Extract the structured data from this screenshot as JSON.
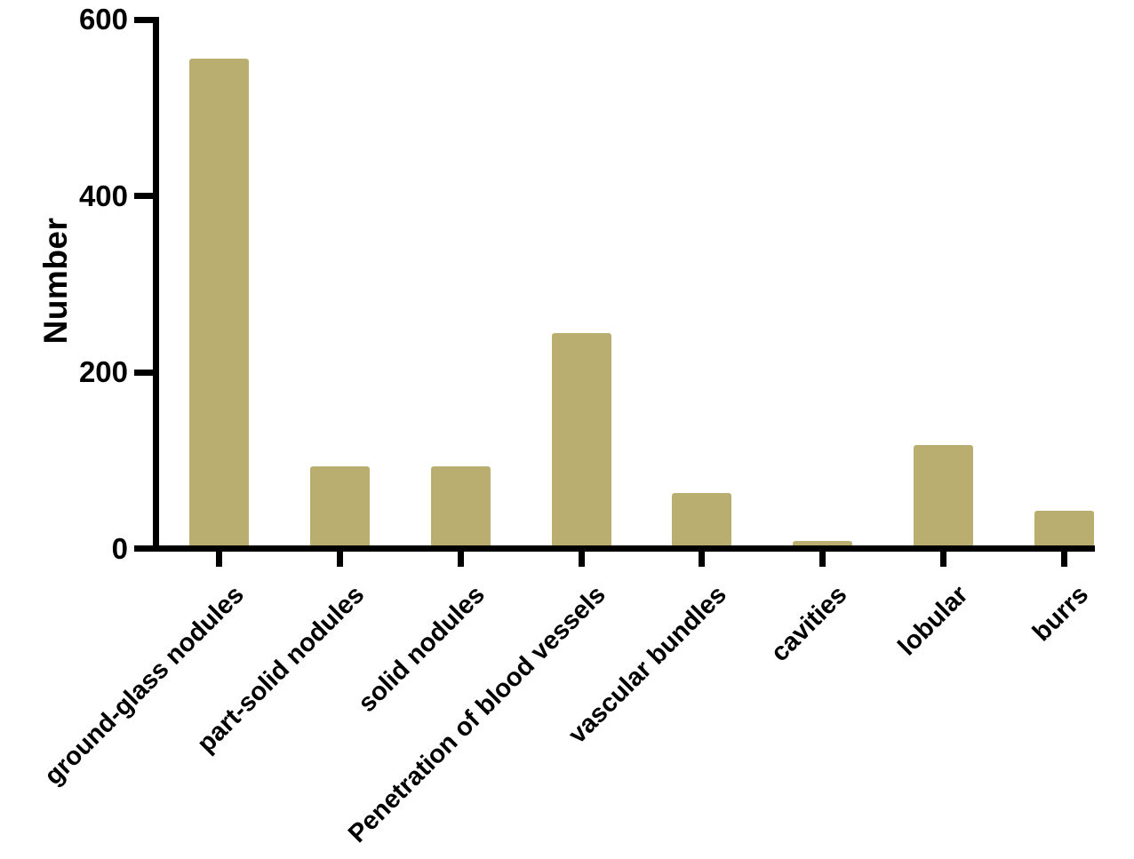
{
  "chart_data": {
    "type": "bar",
    "title": "",
    "xlabel": "",
    "ylabel": "Number",
    "categories": [
      "ground-glass nodules",
      "part-solid nodules",
      "solid nodules",
      "Penetration of blood vessels",
      "vascular bundles",
      "cavities",
      "lobular",
      "burrs"
    ],
    "values": [
      555,
      90,
      90,
      242,
      60,
      5,
      115,
      40
    ],
    "ylim": [
      0,
      600
    ],
    "yticks": [
      0,
      200,
      400,
      600
    ],
    "grid": false,
    "legend": false,
    "x_label_rotation_deg": 45,
    "bar_color": "#b9ae6f",
    "axis_color": "#000000",
    "text_color": "#000000",
    "background_color": "#ffffff"
  }
}
